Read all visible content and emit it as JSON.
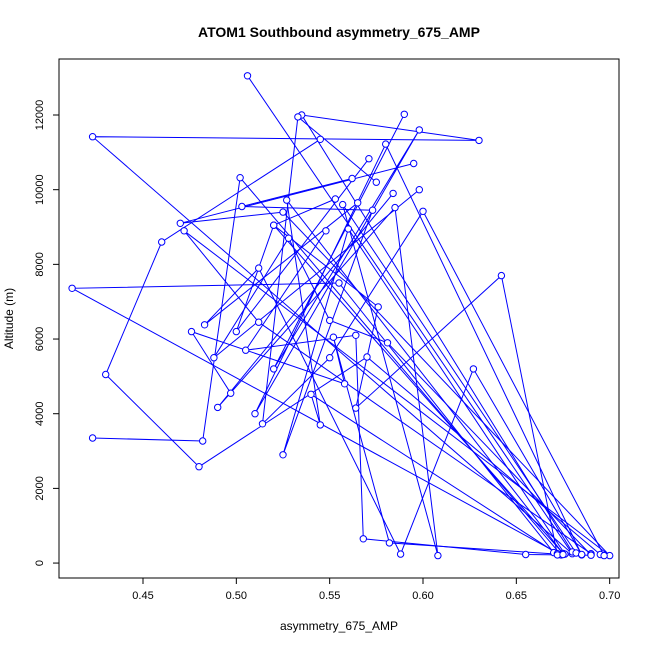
{
  "chart_data": {
    "type": "scatter",
    "title": "ATOM1 Southbound asymmetry_675_AMP",
    "xlabel": "asymmetry_675_AMP",
    "ylabel": "Altitude (m)",
    "xlim": [
      0.405,
      0.705
    ],
    "ylim": [
      -400,
      13500
    ],
    "xticks": [
      0.45,
      0.5,
      0.55,
      0.6,
      0.65,
      0.7
    ],
    "xtick_labels": [
      "0.45",
      "0.50",
      "0.55",
      "0.60",
      "0.65",
      "0.70"
    ],
    "yticks": [
      0,
      2000,
      4000,
      6000,
      8000,
      10000,
      12000
    ],
    "ytick_labels": [
      "0",
      "2000",
      "4000",
      "6000",
      "8000",
      "10000",
      "12000"
    ],
    "grid": false,
    "color": "#0000ff",
    "marker": "open-circle",
    "connected": true,
    "series": [
      {
        "x": [
          0.506,
          0.68,
          0.423,
          0.63,
          0.535,
          0.68
        ],
        "y": [
          13050,
          250,
          11420,
          11320,
          12000,
          300
        ]
      },
      {
        "x": [
          0.59,
          0.52,
          0.598,
          0.51,
          0.58,
          0.685
        ],
        "y": [
          12020,
          5200,
          11600,
          4000,
          11220,
          220
        ]
      },
      {
        "x": [
          0.545,
          0.46,
          0.43,
          0.48,
          0.57,
          0.695
        ],
        "y": [
          11350,
          8600,
          5050,
          2580,
          5520,
          230
        ]
      },
      {
        "x": [
          0.423,
          0.482,
          0.502,
          0.674,
          0.412,
          0.555,
          0.67
        ],
        "y": [
          3350,
          3270,
          10320,
          220,
          7360,
          7500,
          280
        ]
      },
      {
        "x": [
          0.595,
          0.47,
          0.525,
          0.7,
          0.472,
          0.512,
          0.69
        ],
        "y": [
          10700,
          9100,
          9400,
          200,
          8900,
          6450,
          250
        ]
      },
      {
        "x": [
          0.571,
          0.5,
          0.52,
          0.675,
          0.527,
          0.545,
          0.54,
          0.672
        ],
        "y": [
          10830,
          6200,
          9050,
          260,
          9720,
          3700,
          4520,
          250
        ]
      },
      {
        "x": [
          0.584,
          0.49,
          0.585,
          0.608,
          0.557,
          0.682
        ],
        "y": [
          9900,
          4170,
          9520,
          200,
          9600,
          270
        ]
      },
      {
        "x": [
          0.562,
          0.503,
          0.573,
          0.525,
          0.56,
          0.676
        ],
        "y": [
          10300,
          9550,
          9450,
          2900,
          8950,
          240
        ]
      },
      {
        "x": [
          0.598,
          0.488,
          0.528,
          0.55,
          0.581,
          0.69
        ],
        "y": [
          10000,
          5500,
          8700,
          6500,
          5900,
          220
        ]
      },
      {
        "x": [
          0.575,
          0.533,
          0.514,
          0.55,
          0.6,
          0.697
        ],
        "y": [
          10200,
          11950,
          3730,
          5500,
          9420,
          200
        ]
      },
      {
        "x": [
          0.553,
          0.52,
          0.576,
          0.564,
          0.642,
          0.672
        ],
        "y": [
          9750,
          9050,
          6860,
          4150,
          7700,
          220
        ]
      },
      {
        "x": [
          0.565,
          0.483,
          0.512,
          0.588,
          0.627,
          0.685
        ],
        "y": [
          9650,
          6380,
          7900,
          240,
          5200,
          230
        ]
      },
      {
        "x": [
          0.548,
          0.505,
          0.564,
          0.568,
          0.655,
          0.69
        ],
        "y": [
          8900,
          5700,
          6100,
          650,
          230,
          210
        ]
      },
      {
        "x": [
          0.497,
          0.476,
          0.558,
          0.552,
          0.582,
          0.675
        ],
        "y": [
          4550,
          6200,
          4800,
          6050,
          540,
          230
        ]
      }
    ]
  }
}
